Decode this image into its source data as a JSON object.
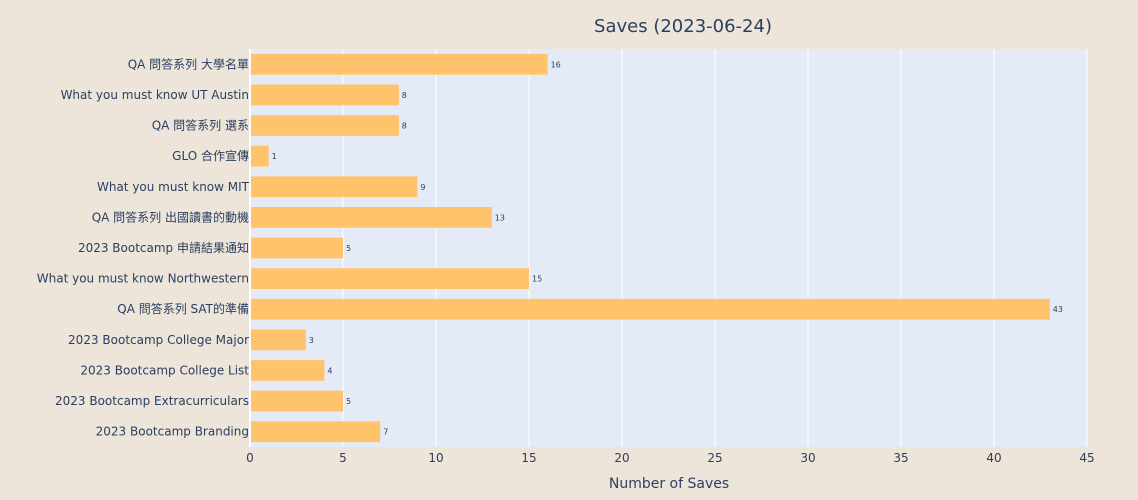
{
  "chart_data": {
    "type": "bar",
    "orientation": "horizontal",
    "title": "Saves (2023-06-24)",
    "xlabel": "Number of Saves",
    "ylabel": "",
    "xlim": [
      0,
      45
    ],
    "x_ticks": [
      0,
      5,
      10,
      15,
      20,
      25,
      30,
      35,
      40,
      45
    ],
    "grid": true,
    "colors": {
      "bar": "#ffc36c",
      "plot_bg": "#e5ebf6",
      "paper_bg": "#ede5da",
      "text": "#2a3f5f",
      "grid": "#ffffff"
    },
    "categories": [
      "QA 問答系列 大學名單",
      "What you must know UT Austin",
      "QA 問答系列 選系",
      "GLO 合作宣傳",
      "What you must know MIT",
      "QA 問答系列 出國讀書的動機",
      "2023 Bootcamp 申請結果通知",
      "What you must know Northwestern",
      "QA 問答系列 SAT的準備",
      "2023 Bootcamp College Major",
      "2023 Bootcamp College List",
      "2023 Bootcamp Extracurriculars",
      "2023 Bootcamp Branding"
    ],
    "values": [
      16,
      8,
      8,
      1,
      9,
      13,
      5,
      15,
      43,
      3,
      4,
      5,
      7
    ],
    "data_labels": [
      "16",
      "8",
      "8",
      "1",
      "9",
      "13",
      "5",
      "15",
      "43",
      "3",
      "4",
      "5",
      "7"
    ]
  }
}
